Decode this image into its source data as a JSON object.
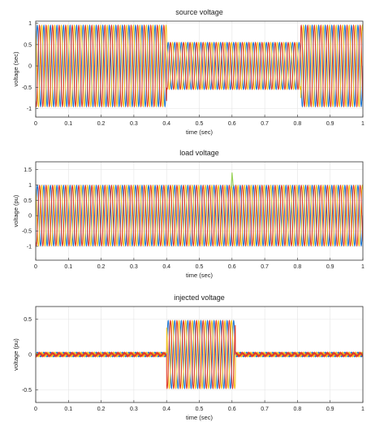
{
  "chart_data": [
    {
      "type": "line",
      "title": "source voltage",
      "xlabel": "time (sec)",
      "ylabel": "voltage (sec)",
      "xlim": [
        0,
        1
      ],
      "ylim": [
        -1.2,
        1.05
      ],
      "grid": true,
      "xticks": [
        "0",
        "0.1",
        "0.2",
        "0.3",
        "0.4",
        "0.5",
        "0.6",
        "0.7",
        "0.8",
        "0.9",
        "1"
      ],
      "yticks": [
        "1",
        "0.5",
        "0",
        "-0.5",
        "-1"
      ],
      "frequency_hz": 50,
      "phase_shift_deg": [
        0,
        -120,
        120
      ],
      "series_colors": [
        "#1f77d4",
        "#e03a2b",
        "#f2c21b"
      ],
      "segments": [
        {
          "t_start": 0,
          "t_end": 0.4,
          "amplitude": 0.95
        },
        {
          "t_start": 0.4,
          "t_end": 0.81,
          "amplitude": 0.55
        },
        {
          "t_start": 0.81,
          "t_end": 1,
          "amplitude": 0.95
        }
      ]
    },
    {
      "type": "line",
      "title": "load voltage",
      "xlabel": "time (sec)",
      "ylabel": "voltage (pu)",
      "xlim": [
        0,
        1
      ],
      "ylim": [
        -1.45,
        1.75
      ],
      "grid": true,
      "xticks": [
        "0",
        "0.1",
        "0.2",
        "0.3",
        "0.4",
        "0.5",
        "0.6",
        "0.7",
        "0.8",
        "0.9",
        "1"
      ],
      "yticks": [
        "1.5",
        "1",
        "0.5",
        "0",
        "-0.5",
        "-1"
      ],
      "frequency_hz": 50,
      "phase_shift_deg": [
        0,
        -120,
        120
      ],
      "series_colors": [
        "#1f77d4",
        "#e03a2b",
        "#f2c21b"
      ],
      "segments": [
        {
          "t_start": 0,
          "t_end": 1,
          "amplitude": 0.98
        }
      ],
      "transient_spike": {
        "t": 0.6,
        "value": 1.4
      }
    },
    {
      "type": "line",
      "title": "injected voltage",
      "xlabel": "time (sec)",
      "ylabel": "voltage (pu)",
      "xlim": [
        0,
        1
      ],
      "ylim": [
        -0.68,
        0.68
      ],
      "grid": true,
      "xticks": [
        "0",
        "0.1",
        "0.2",
        "0.3",
        "0.4",
        "0.5",
        "0.6",
        "0.7",
        "0.8",
        "0.9",
        "1"
      ],
      "yticks": [
        "0.5",
        "0",
        "-0.5"
      ],
      "frequency_hz": 50,
      "phase_shift_deg": [
        0,
        -120,
        120
      ],
      "series_colors": [
        "#1f77d4",
        "#e03a2b",
        "#f2c21b"
      ],
      "segments": [
        {
          "t_start": 0,
          "t_end": 0.4,
          "amplitude": 0.02
        },
        {
          "t_start": 0.4,
          "t_end": 0.61,
          "amplitude": 0.48
        },
        {
          "t_start": 0.61,
          "t_end": 1,
          "amplitude": 0.02
        }
      ]
    }
  ]
}
